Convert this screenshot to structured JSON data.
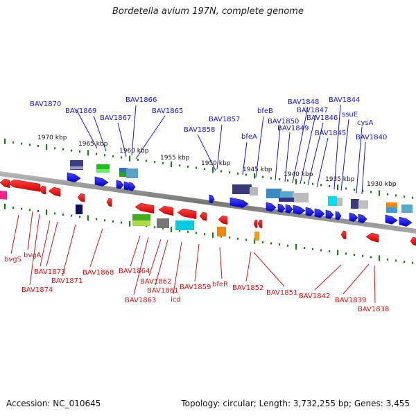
{
  "title": "Bordetella avium 197N, complete genome",
  "footer": {
    "accession": "Accession: NC_010645",
    "summary": "Topology: circular; Length: 3,732,255 bp; Genes: 3,455"
  },
  "colors": {
    "forward_label": "#1515d6",
    "reverse_label": "#dd1111",
    "tick": "#1f7a1f",
    "backbone": "#888888"
  },
  "scale_labels": [
    "1970 kbp",
    "1965 kbp",
    "1960 kbp",
    "1955 kbp",
    "1950 kbp",
    "1945 kbp",
    "1940 kbp",
    "1935 kbp",
    "1930 kbp"
  ],
  "forward_labels": [
    "BAV1870",
    "BAV1869",
    "BAV1867",
    "BAV1866",
    "BAV1865",
    "BAV1858",
    "BAV1857",
    "bfeA",
    "bfeB",
    "BAV1850",
    "BAV1849",
    "BAV1848",
    "BAV1847",
    "BAV1846",
    "BAV1845",
    "BAV1844",
    "ssuE",
    "cysA",
    "BAV1840"
  ],
  "reverse_labels": [
    "bvgS",
    "bvgA",
    "BAV1874",
    "BAV1873",
    "BAV1871",
    "BAV1868",
    "BAV1864",
    "BAV1863",
    "BAV1862",
    "BAV1861",
    "icd",
    "BAV1859",
    "bfeR",
    "BAV1852",
    "BAV1851",
    "BAV1842",
    "BAV1839",
    "BAV1838"
  ]
}
